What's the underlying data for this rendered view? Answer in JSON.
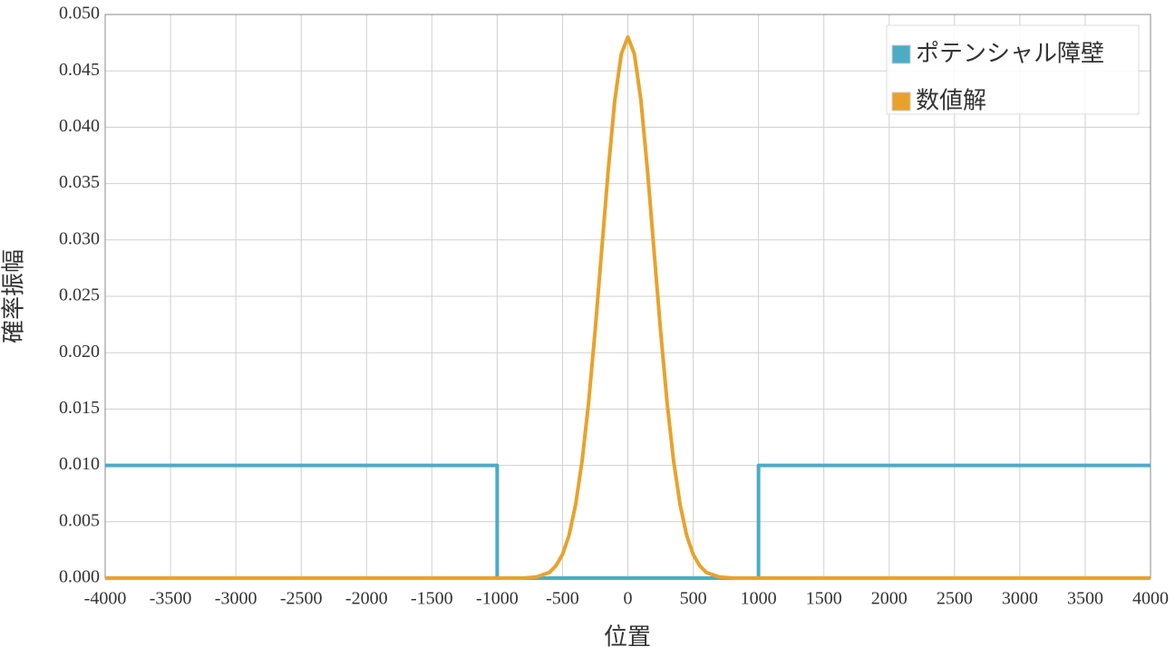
{
  "chart_data": {
    "type": "line",
    "xlabel": "位置",
    "ylabel": "確率振幅",
    "xlim": [
      -4000,
      4000
    ],
    "xticks": [
      -4000,
      -3500,
      -3000,
      -2500,
      -2000,
      -1500,
      -1000,
      -500,
      0,
      500,
      1000,
      1500,
      2000,
      2500,
      3000,
      3500,
      4000
    ],
    "ylim": [
      0,
      0.05
    ],
    "yticks": [
      {
        "value": 0,
        "label": "0.000"
      },
      {
        "value": 0.005,
        "label": "0.005"
      },
      {
        "value": 0.01,
        "label": "0.010"
      },
      {
        "value": 0.015,
        "label": "0.015"
      },
      {
        "value": 0.02,
        "label": "0.020"
      },
      {
        "value": 0.025,
        "label": "0.025"
      },
      {
        "value": 0.03,
        "label": "0.030"
      },
      {
        "value": 0.035,
        "label": "0.035"
      },
      {
        "value": 0.04,
        "label": "0.040"
      },
      {
        "value": 0.045,
        "label": "0.045"
      },
      {
        "value": 0.05,
        "label": "0.050"
      }
    ],
    "grid": true,
    "legend": "upper right",
    "series": [
      {
        "name": "ポテンシャル障壁",
        "color": "#4bacc6",
        "x": [
          -4000,
          -1000,
          -1000,
          1000,
          1000,
          4000
        ],
        "values": [
          0.01,
          0.01,
          0,
          0,
          0.01,
          0.01
        ]
      },
      {
        "name": "数値解",
        "color": "#e8a22b",
        "x": [
          -4000,
          -1000,
          -800,
          -700,
          -600,
          -550,
          -500,
          -450,
          -400,
          -350,
          -300,
          -250,
          -200,
          -150,
          -100,
          -50,
          0,
          50,
          100,
          150,
          200,
          250,
          300,
          350,
          400,
          450,
          500,
          550,
          600,
          700,
          800,
          1000,
          4000
        ],
        "values": [
          0,
          0,
          0,
          0.0001,
          0.0005,
          0.0011,
          0.0021,
          0.0038,
          0.0065,
          0.0104,
          0.0156,
          0.022,
          0.0291,
          0.0362,
          0.0424,
          0.0465,
          0.048,
          0.0465,
          0.0424,
          0.0362,
          0.0291,
          0.022,
          0.0156,
          0.0104,
          0.0065,
          0.0038,
          0.0021,
          0.0011,
          0.0005,
          0.0001,
          0,
          0,
          0
        ]
      }
    ]
  }
}
